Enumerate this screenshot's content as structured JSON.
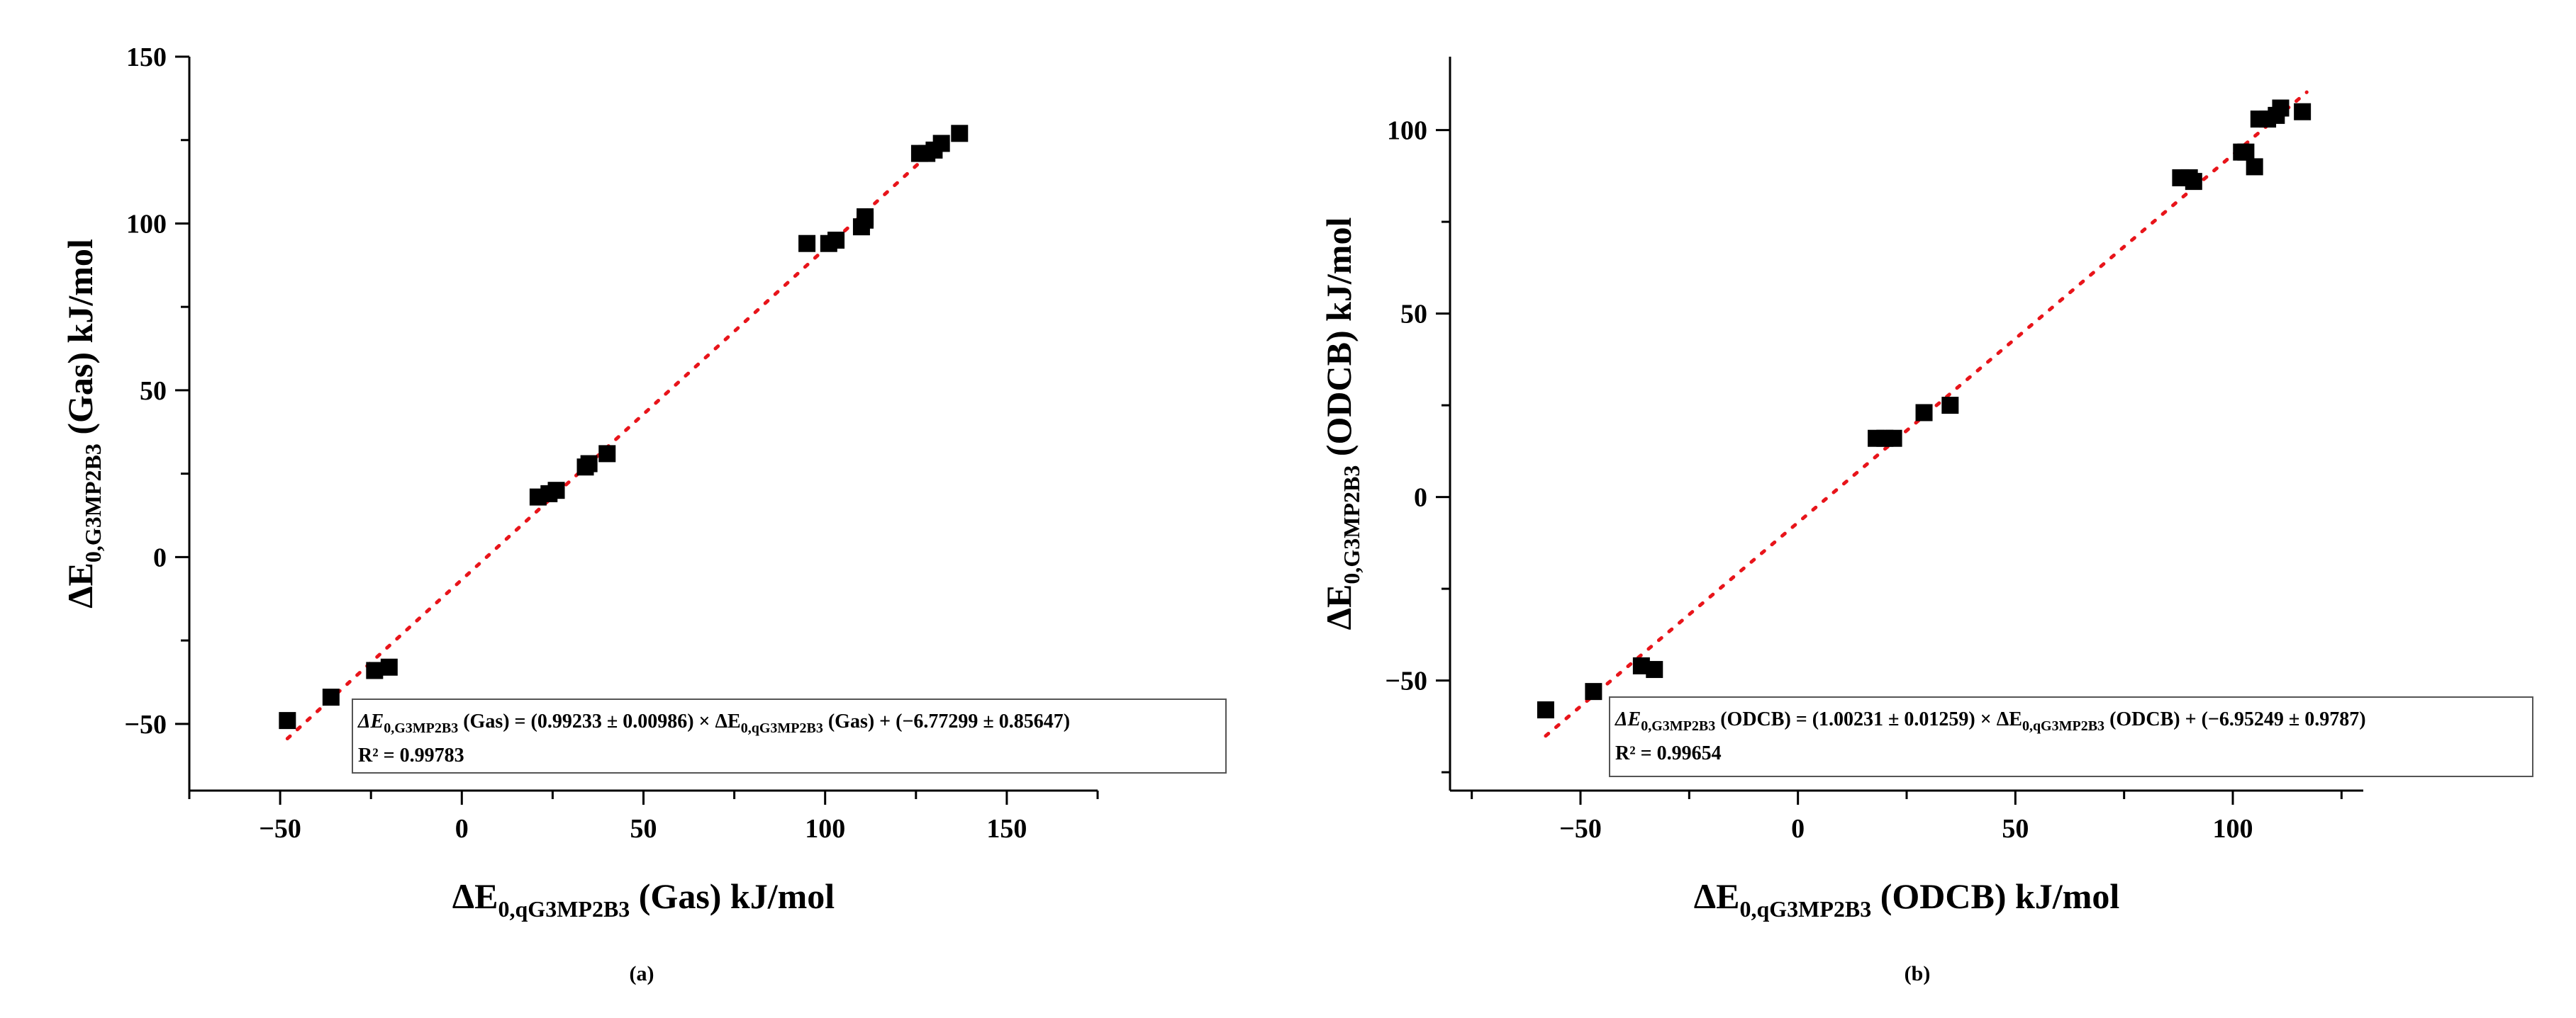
{
  "figure": {
    "panel_labels": [
      "(a)",
      "(b)"
    ]
  },
  "colors": {
    "points": "#000000",
    "fit_line": "#e8141a",
    "axis": "#000000"
  },
  "chart_data": [
    {
      "type": "scatter",
      "panel": "(a)",
      "xlabel": {
        "prefix": "ΔE",
        "sub": "0,qG3MP2B3",
        "suffix": " (Gas) kJ/mol"
      },
      "ylabel": {
        "prefix": "ΔE",
        "sub": "0,G3MP2B3",
        "suffix": " (Gas) kJ/mol"
      },
      "xlim": [
        -75,
        175
      ],
      "ylim": [
        -70,
        150
      ],
      "xticks": [
        -50,
        0,
        50,
        100,
        150
      ],
      "yticks": [
        -50,
        0,
        50,
        100,
        150
      ],
      "x_minor_step": 25,
      "y_minor_step": 25,
      "x": [
        -48,
        -36,
        -24,
        -20,
        21,
        24,
        26,
        34,
        35,
        40,
        95,
        101,
        103,
        110,
        111,
        111,
        126,
        128,
        130,
        132,
        137
      ],
      "y": [
        -49,
        -42,
        -34,
        -33,
        18,
        19,
        20,
        27,
        28,
        31,
        94,
        94,
        95,
        99,
        101,
        102,
        121,
        121,
        122,
        124,
        127
      ],
      "fit": {
        "slope": 0.99233,
        "intercept": -6.77299,
        "x_range": [
          -48,
          138
        ]
      },
      "legend": {
        "line1_prefix": "ΔE",
        "line1_sub": "0,G3MP2B3",
        "line1_mid": " (Gas) = (0.99233 ± 0.00986) × ΔE",
        "line1_sub2": "0,qG3MP2B3",
        "line1_suffix": " (Gas) + (−6.77299 ± 0.85647)",
        "line2": "R² = 0.99783"
      }
    },
    {
      "type": "scatter",
      "panel": "(b)",
      "xlabel": {
        "prefix": "ΔE",
        "sub": "0,qG3MP2B3",
        "suffix": " (ODCB) kJ/mol"
      },
      "ylabel": {
        "prefix": "ΔE",
        "sub": "0,G3MP2B3",
        "suffix": " (ODCB) kJ/mol"
      },
      "xlim": [
        -80,
        130
      ],
      "ylim": [
        -80,
        120
      ],
      "xticks": [
        -50,
        0,
        50,
        100
      ],
      "yticks": [
        -50,
        0,
        50,
        100
      ],
      "x_minor_step": 25,
      "y_minor_step": 25,
      "x": [
        -58,
        -47,
        -36,
        -33,
        18,
        20,
        22,
        29,
        35,
        88,
        90,
        91,
        102,
        103,
        105,
        106,
        108,
        110,
        111,
        116
      ],
      "y": [
        -58,
        -53,
        -46,
        -47,
        16,
        16,
        16,
        23,
        25,
        87,
        87,
        86,
        94,
        94,
        90,
        103,
        103,
        104,
        106,
        105
      ],
      "fit": {
        "slope": 1.00231,
        "intercept": -6.95249,
        "x_range": [
          -58,
          117
        ]
      },
      "legend": {
        "line1_prefix": "ΔE",
        "line1_sub": "0,G3MP2B3",
        "line1_mid": " (ODCB) = (1.00231 ± 0.01259) × ΔE",
        "line1_sub2": "0,qG3MP2B3",
        "line1_suffix": " (ODCB) + (−6.95249 ± 0.9787)",
        "line2": "R² = 0.99654"
      }
    }
  ]
}
